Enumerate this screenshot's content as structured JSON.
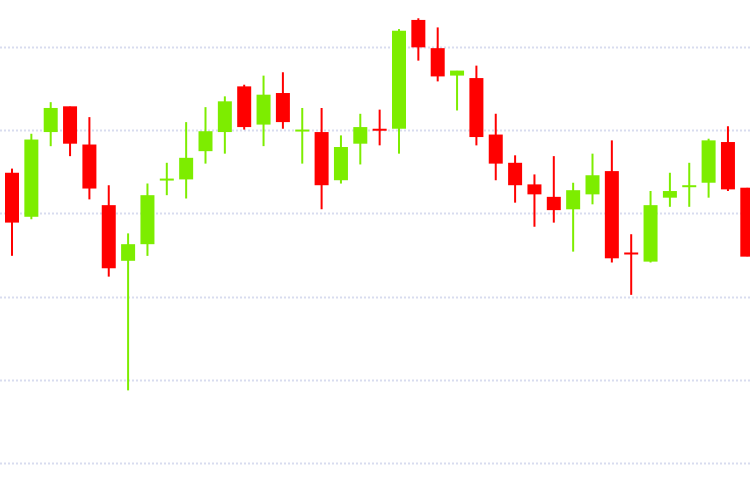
{
  "chart_data": {
    "type": "candlestick",
    "title": "",
    "xlabel": "",
    "ylabel": "",
    "ylim": [
      -0.45,
      5.57
    ],
    "grid": {
      "horizontal": true,
      "vertical": false,
      "style": "dotted",
      "levels": [
        0,
        1,
        2,
        3,
        4,
        5
      ]
    },
    "colors": {
      "up": "#7ded00",
      "down": "#ff0000",
      "grid": "#d8dcef",
      "background": "#ffffff"
    },
    "candles": [
      {
        "o": 3.49,
        "h": 3.54,
        "l": 2.49,
        "c": 2.89
      },
      {
        "o": 2.96,
        "h": 3.96,
        "l": 2.93,
        "c": 3.89
      },
      {
        "o": 3.98,
        "h": 4.34,
        "l": 3.81,
        "c": 4.27
      },
      {
        "o": 4.29,
        "h": 4.29,
        "l": 3.69,
        "c": 3.84
      },
      {
        "o": 3.83,
        "h": 4.16,
        "l": 3.17,
        "c": 3.3
      },
      {
        "o": 3.1,
        "h": 3.34,
        "l": 2.24,
        "c": 2.34
      },
      {
        "o": 2.43,
        "h": 2.76,
        "l": 0.87,
        "c": 2.63
      },
      {
        "o": 2.63,
        "h": 3.36,
        "l": 2.49,
        "c": 3.22
      },
      {
        "o": 3.41,
        "h": 3.61,
        "l": 3.22,
        "c": 3.42
      },
      {
        "o": 3.41,
        "h": 4.1,
        "l": 3.18,
        "c": 3.67
      },
      {
        "o": 3.75,
        "h": 4.28,
        "l": 3.6,
        "c": 3.99
      },
      {
        "o": 3.98,
        "h": 4.41,
        "l": 3.72,
        "c": 4.35
      },
      {
        "o": 4.53,
        "h": 4.55,
        "l": 4.01,
        "c": 4.04
      },
      {
        "o": 4.07,
        "h": 4.66,
        "l": 3.81,
        "c": 4.43
      },
      {
        "o": 4.45,
        "h": 4.7,
        "l": 4.02,
        "c": 4.1
      },
      {
        "o": 4.0,
        "h": 4.27,
        "l": 3.6,
        "c": 4.01
      },
      {
        "o": 3.98,
        "h": 4.27,
        "l": 3.05,
        "c": 3.34
      },
      {
        "o": 3.4,
        "h": 3.94,
        "l": 3.36,
        "c": 3.8
      },
      {
        "o": 3.84,
        "h": 4.2,
        "l": 3.59,
        "c": 4.04
      },
      {
        "o": 4.02,
        "h": 4.25,
        "l": 3.82,
        "c": 4.0
      },
      {
        "o": 4.02,
        "h": 5.22,
        "l": 3.72,
        "c": 5.2
      },
      {
        "o": 5.33,
        "h": 5.35,
        "l": 4.84,
        "c": 5.0
      },
      {
        "o": 4.99,
        "h": 5.24,
        "l": 4.59,
        "c": 4.65
      },
      {
        "o": 4.66,
        "h": 4.72,
        "l": 4.24,
        "c": 4.72
      },
      {
        "o": 4.63,
        "h": 4.78,
        "l": 3.82,
        "c": 3.92
      },
      {
        "o": 3.95,
        "h": 4.2,
        "l": 3.4,
        "c": 3.6
      },
      {
        "o": 3.61,
        "h": 3.7,
        "l": 3.13,
        "c": 3.34
      },
      {
        "o": 3.35,
        "h": 3.47,
        "l": 2.84,
        "c": 3.23
      },
      {
        "o": 3.2,
        "h": 3.69,
        "l": 2.89,
        "c": 3.04
      },
      {
        "o": 3.05,
        "h": 3.37,
        "l": 2.54,
        "c": 3.28
      },
      {
        "o": 3.23,
        "h": 3.72,
        "l": 3.11,
        "c": 3.46
      },
      {
        "o": 3.51,
        "h": 3.88,
        "l": 2.41,
        "c": 2.46
      },
      {
        "o": 2.53,
        "h": 2.75,
        "l": 2.02,
        "c": 2.52
      },
      {
        "o": 2.42,
        "h": 3.27,
        "l": 2.41,
        "c": 3.1
      },
      {
        "o": 3.19,
        "h": 3.49,
        "l": 3.08,
        "c": 3.27
      },
      {
        "o": 3.33,
        "h": 3.61,
        "l": 3.08,
        "c": 3.34
      },
      {
        "o": 3.37,
        "h": 3.9,
        "l": 3.19,
        "c": 3.88
      },
      {
        "o": 3.86,
        "h": 4.05,
        "l": 3.27,
        "c": 3.29
      },
      {
        "o": 3.31,
        "h": 3.31,
        "l": 2.48,
        "c": 2.48
      }
    ]
  }
}
